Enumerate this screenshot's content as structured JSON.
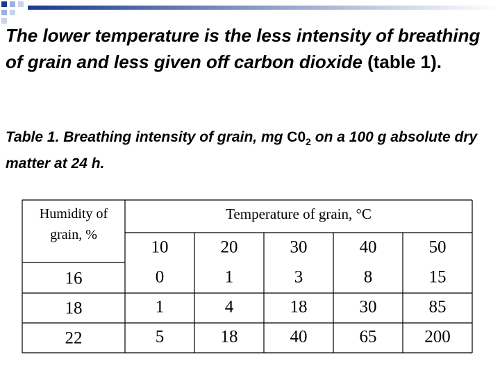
{
  "slide": {
    "paragraph": {
      "italic": "The lower temperature is the less intensity of breathing of grain and less given off carbon dioxide",
      "plain": " (table 1)."
    },
    "caption": {
      "before": "Table 1. Breathing intensity of grain, mg ",
      "chem": "C0",
      "subscript": "2",
      "after": " on a 100 g absolute dry matter at 24 h."
    },
    "table": {
      "row_header": "Humidity of grain, %",
      "column_header": "Temperature of grain, °C",
      "temperatures": [
        10,
        20,
        30,
        40,
        50
      ],
      "rows": [
        {
          "humidity": 16,
          "values": [
            0,
            1,
            3,
            8,
            15
          ]
        },
        {
          "humidity": 18,
          "values": [
            1,
            4,
            18,
            30,
            85
          ]
        },
        {
          "humidity": 22,
          "values": [
            5,
            18,
            40,
            65,
            200
          ]
        }
      ]
    }
  }
}
